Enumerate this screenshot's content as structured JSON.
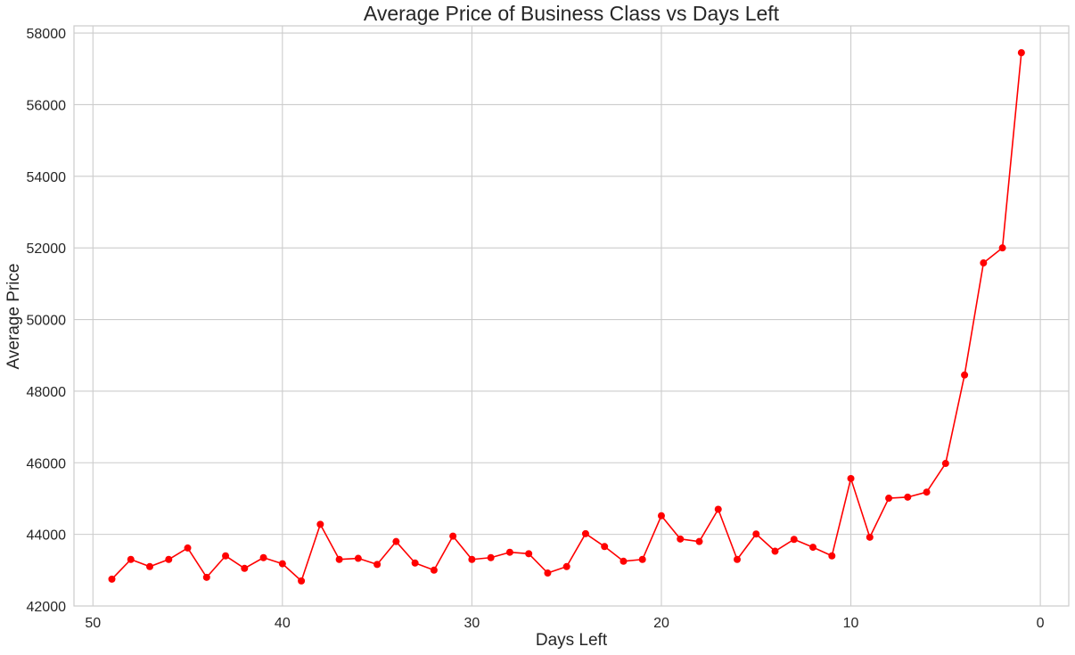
{
  "chart_data": {
    "type": "line",
    "title": "Average Price of Business Class vs Days Left",
    "xlabel": "Days Left",
    "ylabel": "Average Price",
    "xlim": [
      51,
      -1.5
    ],
    "ylim": [
      42000,
      58200
    ],
    "x_inverted": true,
    "grid": true,
    "x_ticks": [
      50,
      40,
      30,
      20,
      10,
      0
    ],
    "y_ticks": [
      42000,
      44000,
      46000,
      48000,
      50000,
      52000,
      54000,
      56000,
      58000
    ],
    "series": [
      {
        "color": "#ff0000",
        "marker": "circle",
        "x": [
          49,
          48,
          47,
          46,
          45,
          44,
          43,
          42,
          41,
          40,
          39,
          38,
          37,
          36,
          35,
          34,
          33,
          32,
          31,
          30,
          29,
          28,
          27,
          26,
          25,
          24,
          23,
          22,
          21,
          20,
          19,
          18,
          17,
          16,
          15,
          14,
          13,
          12,
          11,
          10,
          9,
          8,
          7,
          6,
          5,
          4,
          3,
          2,
          1
        ],
        "y": [
          42750,
          43300,
          43100,
          43300,
          43620,
          42800,
          43400,
          43050,
          43350,
          43180,
          42700,
          44280,
          43300,
          43330,
          43160,
          43800,
          43200,
          43000,
          43950,
          43300,
          43350,
          43500,
          43460,
          42920,
          43100,
          44020,
          43660,
          43250,
          43300,
          44520,
          43870,
          43800,
          44700,
          43300,
          44010,
          43530,
          43860,
          43640,
          43400,
          45560,
          43920,
          45010,
          45040,
          45180,
          45980,
          48450,
          51580,
          52000,
          57450
        ]
      }
    ]
  }
}
